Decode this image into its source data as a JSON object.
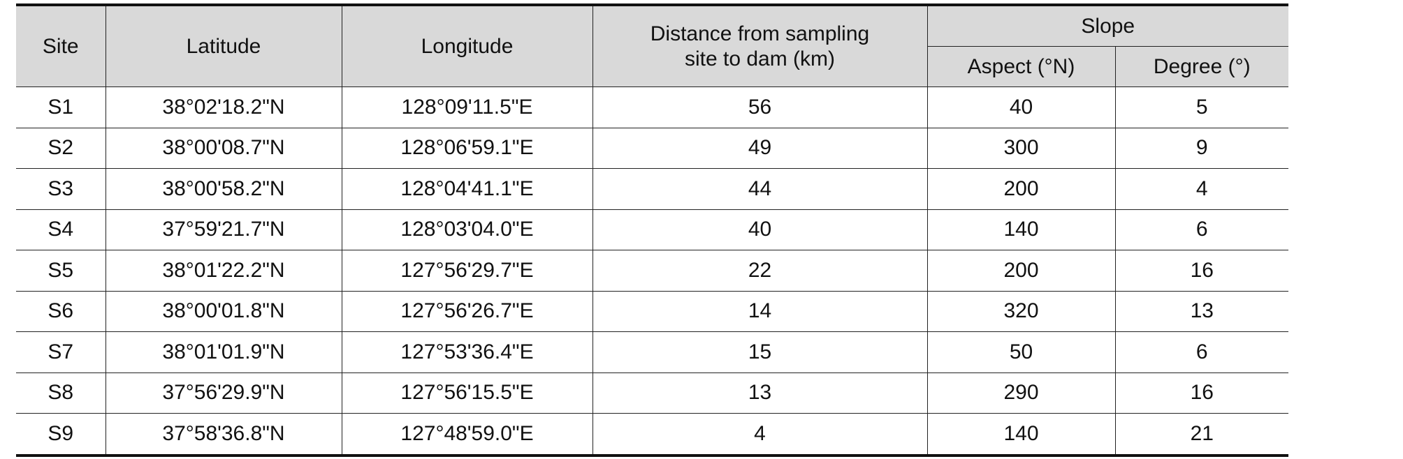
{
  "table": {
    "header": {
      "site": "Site",
      "latitude": "Latitude",
      "longitude": "Longitude",
      "distance": "Distance from sampling site to dam (km)",
      "slope": "Slope",
      "aspect": "Aspect (°N)",
      "degree": "Degree (°)"
    },
    "rows": [
      [
        "S1",
        "38°02'18.2\"N",
        "128°09'11.5\"E",
        56,
        40,
        5
      ],
      [
        "S2",
        "38°00'08.7\"N",
        "128°06'59.1\"E",
        49,
        300,
        9
      ],
      [
        "S3",
        "38°00'58.2\"N",
        "128°04'41.1\"E",
        44,
        200,
        4
      ],
      [
        "S4",
        "37°59'21.7\"N",
        "128°03'04.0\"E",
        40,
        140,
        6
      ],
      [
        "S5",
        "38°01'22.2\"N",
        "127°56'29.7\"E",
        22,
        200,
        16
      ],
      [
        "S6",
        "38°00'01.8\"N",
        "127°56'26.7\"E",
        14,
        320,
        13
      ],
      [
        "S7",
        "38°01'01.9\"N",
        "127°53'36.4\"E",
        15,
        50,
        6
      ],
      [
        "S8",
        "37°56'29.9\"N",
        "127°56'15.5\"E",
        13,
        290,
        16
      ],
      [
        "S9",
        "37°58'36.8\"N",
        "127°48'59.0\"E",
        4,
        140,
        21
      ]
    ]
  }
}
